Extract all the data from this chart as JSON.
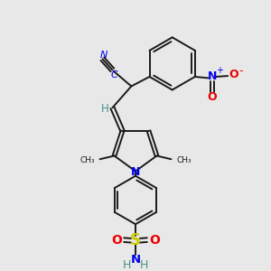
{
  "bg_color": "#e8e8e8",
  "colors": {
    "C": "#1a1a1a",
    "N": "#0000ee",
    "O": "#ee0000",
    "S": "#cccc00",
    "H": "#4a8f8f",
    "bond": "#1a1a1a"
  },
  "figsize": [
    3.0,
    3.0
  ],
  "dpi": 100
}
